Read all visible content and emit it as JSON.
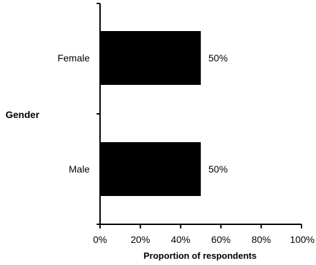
{
  "chart_data": {
    "type": "bar",
    "orientation": "horizontal",
    "categories": [
      "Female",
      "Male"
    ],
    "values": [
      50,
      50
    ],
    "value_unit": "percent",
    "data_labels": [
      "50%",
      "50%"
    ],
    "title": "",
    "xlabel": "Proportion of respondents",
    "ylabel": "Gender",
    "xlim": [
      0,
      100
    ],
    "x_ticks": [
      0,
      20,
      40,
      60,
      80,
      100
    ],
    "x_tick_labels": [
      "0%",
      "20%",
      "40%",
      "60%",
      "80%",
      "100%"
    ],
    "grid": false,
    "legend": "none",
    "bar_color": "#000000",
    "axis_color": "#000000",
    "text_color": "#000000"
  }
}
